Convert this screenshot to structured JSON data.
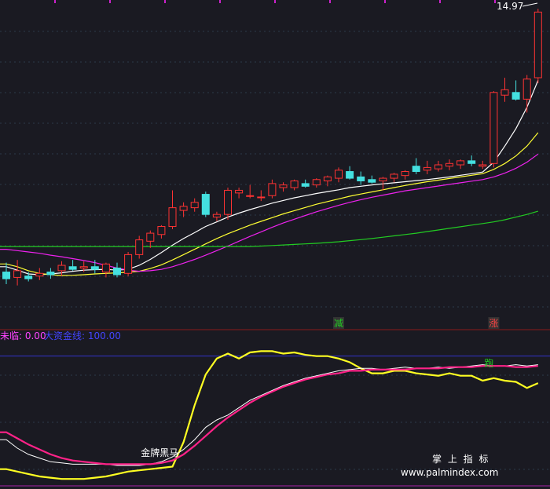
{
  "chart_data": [
    {
      "type": "candlestick",
      "title": "",
      "price_label": "14.97",
      "ylim": [
        3.0,
        15.3
      ],
      "candles": [
        {
          "o": 5.15,
          "h": 5.5,
          "l": 4.7,
          "c": 4.9
        },
        {
          "o": 4.95,
          "h": 5.6,
          "l": 4.65,
          "c": 5.2
        },
        {
          "o": 5.0,
          "h": 5.15,
          "l": 4.8,
          "c": 4.9
        },
        {
          "o": 5.0,
          "h": 5.3,
          "l": 4.85,
          "c": 5.1
        },
        {
          "o": 5.15,
          "h": 5.3,
          "l": 4.9,
          "c": 5.05
        },
        {
          "o": 5.2,
          "h": 5.55,
          "l": 5.0,
          "c": 5.4
        },
        {
          "o": 5.35,
          "h": 5.6,
          "l": 5.2,
          "c": 5.25
        },
        {
          "o": 5.3,
          "h": 5.55,
          "l": 5.15,
          "c": 5.35
        },
        {
          "o": 5.35,
          "h": 5.6,
          "l": 5.1,
          "c": 5.25
        },
        {
          "o": 5.15,
          "h": 5.5,
          "l": 4.95,
          "c": 5.45
        },
        {
          "o": 5.3,
          "h": 5.5,
          "l": 4.95,
          "c": 5.05
        },
        {
          "o": 5.1,
          "h": 5.9,
          "l": 5.0,
          "c": 5.8
        },
        {
          "o": 5.8,
          "h": 6.5,
          "l": 5.65,
          "c": 6.35
        },
        {
          "o": 6.3,
          "h": 6.7,
          "l": 6.05,
          "c": 6.6
        },
        {
          "o": 6.55,
          "h": 6.9,
          "l": 6.4,
          "c": 6.85
        },
        {
          "o": 6.85,
          "h": 8.2,
          "l": 6.75,
          "c": 7.55
        },
        {
          "o": 7.45,
          "h": 7.75,
          "l": 7.2,
          "c": 7.6
        },
        {
          "o": 7.55,
          "h": 7.9,
          "l": 7.4,
          "c": 7.75
        },
        {
          "o": 8.05,
          "h": 8.15,
          "l": 7.2,
          "c": 7.3
        },
        {
          "o": 7.2,
          "h": 7.4,
          "l": 7.05,
          "c": 7.3
        },
        {
          "o": 7.3,
          "h": 8.3,
          "l": 7.1,
          "c": 8.2
        },
        {
          "o": 8.1,
          "h": 8.3,
          "l": 7.9,
          "c": 8.2
        },
        {
          "o": 8.0,
          "h": 8.4,
          "l": 7.9,
          "c": 8.0
        },
        {
          "o": 7.95,
          "h": 8.2,
          "l": 7.8,
          "c": 7.95
        },
        {
          "o": 8.0,
          "h": 8.6,
          "l": 7.9,
          "c": 8.45
        },
        {
          "o": 8.3,
          "h": 8.5,
          "l": 8.15,
          "c": 8.4
        },
        {
          "o": 8.3,
          "h": 8.6,
          "l": 8.2,
          "c": 8.55
        },
        {
          "o": 8.45,
          "h": 8.6,
          "l": 8.3,
          "c": 8.35
        },
        {
          "o": 8.4,
          "h": 8.65,
          "l": 8.3,
          "c": 8.6
        },
        {
          "o": 8.55,
          "h": 8.75,
          "l": 8.35,
          "c": 8.7
        },
        {
          "o": 8.65,
          "h": 9.05,
          "l": 8.5,
          "c": 8.95
        },
        {
          "o": 8.9,
          "h": 9.1,
          "l": 8.6,
          "c": 8.65
        },
        {
          "o": 8.7,
          "h": 8.9,
          "l": 8.4,
          "c": 8.55
        },
        {
          "o": 8.6,
          "h": 8.75,
          "l": 8.45,
          "c": 8.5
        },
        {
          "o": 8.55,
          "h": 8.7,
          "l": 8.2,
          "c": 8.65
        },
        {
          "o": 8.65,
          "h": 8.85,
          "l": 8.5,
          "c": 8.8
        },
        {
          "o": 8.75,
          "h": 8.95,
          "l": 8.6,
          "c": 8.9
        },
        {
          "o": 9.1,
          "h": 9.4,
          "l": 8.8,
          "c": 8.9
        },
        {
          "o": 8.95,
          "h": 9.3,
          "l": 8.8,
          "c": 9.05
        },
        {
          "o": 9.0,
          "h": 9.3,
          "l": 8.9,
          "c": 9.15
        },
        {
          "o": 9.1,
          "h": 9.35,
          "l": 8.95,
          "c": 9.2
        },
        {
          "o": 9.15,
          "h": 9.35,
          "l": 9.0,
          "c": 9.3
        },
        {
          "o": 9.3,
          "h": 9.5,
          "l": 9.1,
          "c": 9.2
        },
        {
          "o": 9.1,
          "h": 9.3,
          "l": 9.0,
          "c": 9.15
        },
        {
          "o": 9.2,
          "h": 11.9,
          "l": 9.05,
          "c": 11.85
        },
        {
          "o": 11.75,
          "h": 12.4,
          "l": 11.5,
          "c": 11.95
        },
        {
          "o": 11.85,
          "h": 12.3,
          "l": 11.55,
          "c": 11.6
        },
        {
          "o": 11.6,
          "h": 12.5,
          "l": 11.1,
          "c": 12.35
        },
        {
          "o": 12.4,
          "h": 14.97,
          "l": 12.2,
          "c": 14.85
        }
      ],
      "series": [
        {
          "values": [
            5.35,
            5.22,
            5.08,
            5.05,
            5.08,
            5.12,
            5.18,
            5.22,
            5.24,
            5.25,
            5.22,
            5.25,
            5.4,
            5.62,
            5.88,
            6.15,
            6.4,
            6.62,
            6.85,
            7.02,
            7.2,
            7.35,
            7.48,
            7.6,
            7.72,
            7.82,
            7.92,
            8.0,
            8.08,
            8.15,
            8.22,
            8.3,
            8.35,
            8.4,
            8.44,
            8.48,
            8.52,
            8.56,
            8.6,
            8.65,
            8.7,
            8.76,
            8.82,
            8.88,
            9.25,
            9.85,
            10.5,
            11.3,
            12.3
          ],
          "color": "#ffffff"
        },
        {
          "values": [
            5.45,
            5.35,
            5.2,
            5.1,
            5.05,
            5.02,
            5.03,
            5.05,
            5.08,
            5.1,
            5.12,
            5.14,
            5.18,
            5.28,
            5.42,
            5.6,
            5.8,
            6.0,
            6.2,
            6.4,
            6.58,
            6.74,
            6.9,
            7.04,
            7.18,
            7.32,
            7.44,
            7.56,
            7.68,
            7.78,
            7.88,
            7.98,
            8.06,
            8.14,
            8.22,
            8.3,
            8.38,
            8.45,
            8.52,
            8.58,
            8.64,
            8.7,
            8.76,
            8.82,
            8.98,
            9.2,
            9.48,
            9.85,
            10.35
          ],
          "color": "#ffff33"
        },
        {
          "values": [
            6.0,
            5.95,
            5.9,
            5.85,
            5.78,
            5.72,
            5.65,
            5.58,
            5.5,
            5.4,
            5.3,
            5.22,
            5.18,
            5.2,
            5.25,
            5.35,
            5.48,
            5.62,
            5.78,
            5.95,
            6.12,
            6.3,
            6.48,
            6.65,
            6.82,
            6.98,
            7.12,
            7.26,
            7.4,
            7.52,
            7.64,
            7.75,
            7.85,
            7.94,
            8.02,
            8.1,
            8.18,
            8.24,
            8.3,
            8.36,
            8.42,
            8.48,
            8.54,
            8.6,
            8.7,
            8.84,
            9.02,
            9.25,
            9.55
          ],
          "color": "#ee22ee"
        },
        {
          "values": [
            6.1,
            6.1,
            6.1,
            6.1,
            6.1,
            6.1,
            6.1,
            6.1,
            6.1,
            6.1,
            6.1,
            6.1,
            6.1,
            6.1,
            6.1,
            6.1,
            6.1,
            6.1,
            6.1,
            6.1,
            6.1,
            6.1,
            6.1,
            6.12,
            6.14,
            6.16,
            6.18,
            6.2,
            6.22,
            6.25,
            6.28,
            6.32,
            6.36,
            6.4,
            6.45,
            6.5,
            6.55,
            6.6,
            6.66,
            6.72,
            6.78,
            6.84,
            6.9,
            6.96,
            7.02,
            7.1,
            7.2,
            7.3,
            7.42
          ],
          "color": "#22cc22"
        }
      ],
      "signals": [
        {
          "index": 30,
          "label": "减",
          "color": "#22cc22"
        },
        {
          "index": 44,
          "label": "涨",
          "color": "#ff4444"
        }
      ]
    },
    {
      "type": "line",
      "title": "",
      "ylim": [
        -5,
        110
      ],
      "header": {
        "part1": "未临: 0.00",
        "part2": "大资金线: 100.00"
      },
      "reference_line": 100,
      "series": [
        {
          "values": [
            8,
            6,
            4,
            2,
            1,
            0,
            0,
            0,
            1,
            2,
            4,
            6,
            7,
            8,
            9,
            10,
            30,
            60,
            85,
            98,
            102,
            98,
            103,
            104,
            104,
            102,
            103,
            101,
            100,
            100,
            98,
            95,
            90,
            86,
            86,
            88,
            88,
            86,
            85,
            84,
            86,
            84,
            84,
            80,
            82,
            80,
            79,
            74,
            78
          ],
          "color": "#ffff22"
        },
        {
          "values": [
            32,
            25,
            20,
            17,
            14,
            13,
            12,
            12,
            12,
            12,
            11,
            11,
            11,
            12,
            14,
            18,
            24,
            32,
            42,
            48,
            52,
            58,
            64,
            68,
            72,
            76,
            79,
            82,
            84,
            86,
            88,
            89,
            90,
            90,
            89,
            90,
            91,
            90,
            90,
            91,
            90,
            91,
            92,
            93,
            92,
            92,
            93,
            92,
            93
          ],
          "color": "#ffffff"
        },
        {
          "values": [
            38,
            33,
            28,
            24,
            20,
            17,
            15,
            14,
            13,
            12,
            12,
            12,
            12,
            12,
            13,
            15,
            20,
            27,
            35,
            43,
            50,
            56,
            62,
            67,
            71,
            75,
            78,
            81,
            83,
            85,
            86,
            88,
            88,
            89,
            89,
            89,
            89,
            90,
            90,
            90,
            91,
            91,
            91,
            92,
            92,
            92,
            91,
            91,
            92
          ],
          "color": "#ff2288"
        }
      ],
      "annotations": [
        {
          "index": 13,
          "label": "金牌黑马"
        },
        {
          "index": 44,
          "label": "跑"
        }
      ]
    }
  ],
  "watermark": {
    "line1": "掌 上 指 标",
    "line2": "www.palmindex.com"
  }
}
